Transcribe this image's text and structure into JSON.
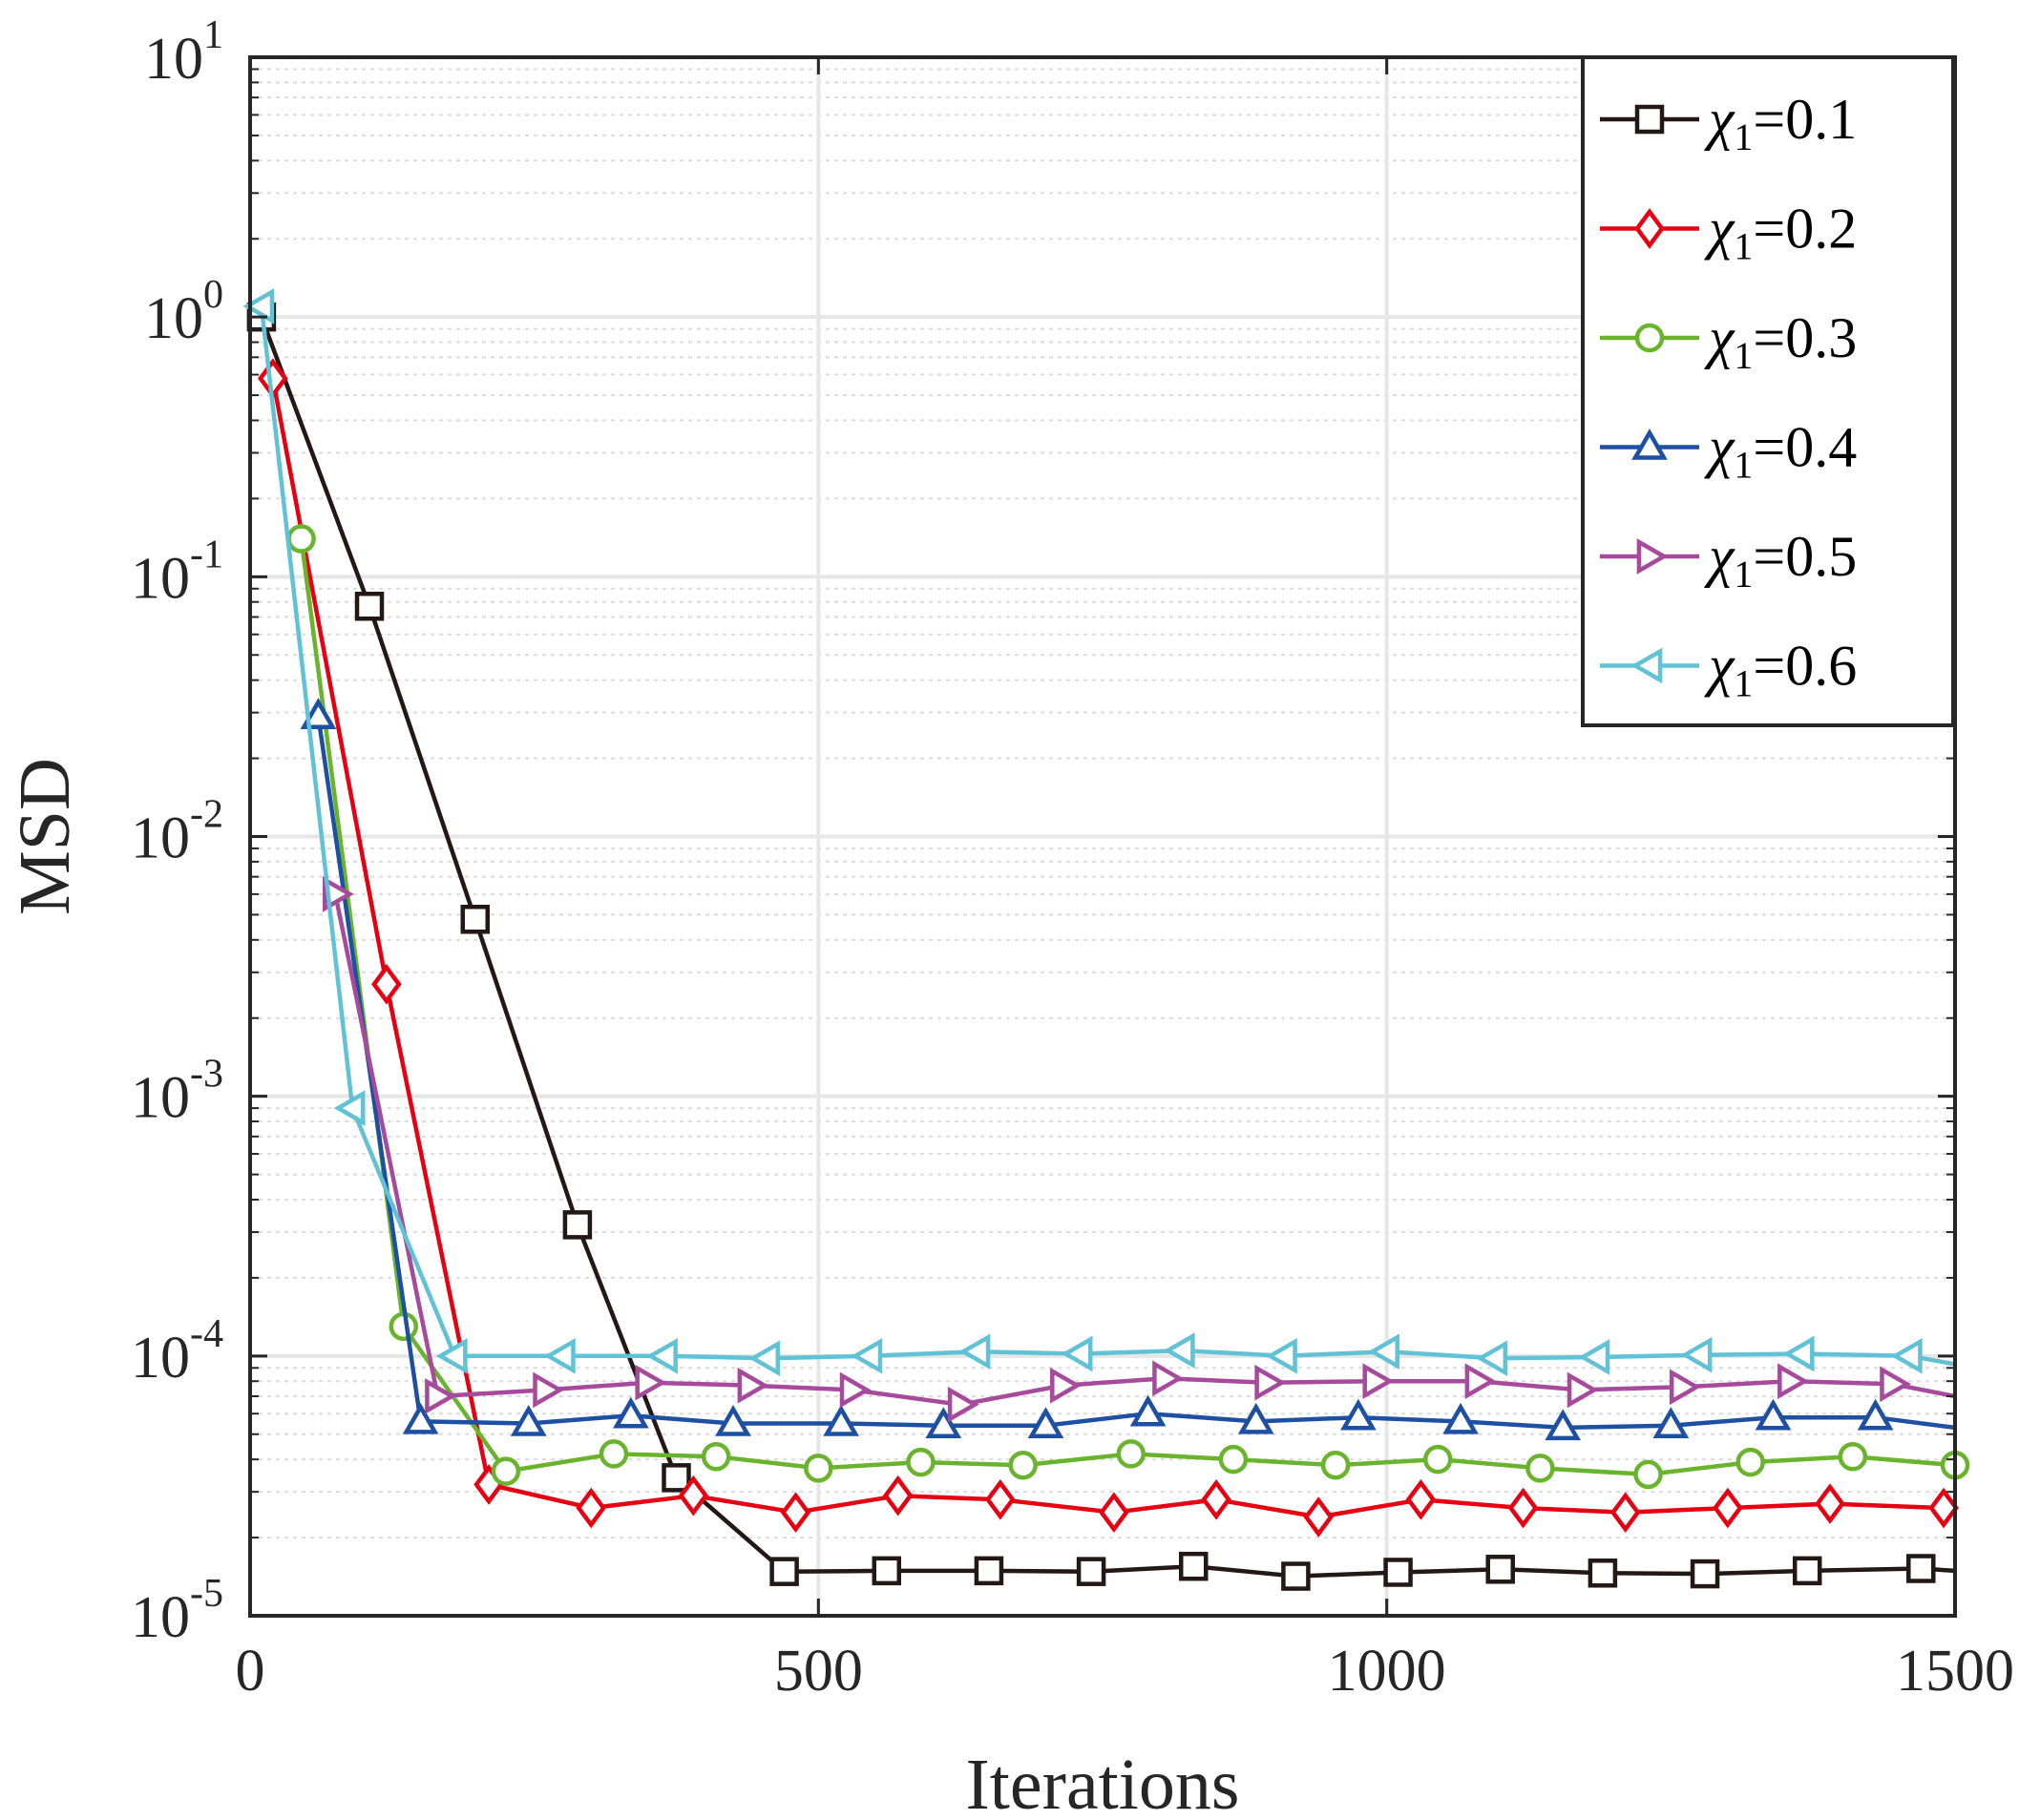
{
  "chart_data": {
    "type": "line",
    "xlabel": "Iterations",
    "ylabel": "MSD",
    "xlim": [
      0,
      1500
    ],
    "ylim": [
      1e-05,
      10
    ],
    "yscale": "log",
    "grid": true,
    "legend_position": "top-right",
    "x_ticks": [
      "0",
      "500",
      "1000",
      "1500"
    ],
    "y_ticks": [
      {
        "base": "10",
        "exp": "-5",
        "value": 1e-05
      },
      {
        "base": "10",
        "exp": "-4",
        "value": 0.0001
      },
      {
        "base": "10",
        "exp": "-3",
        "value": 0.001
      },
      {
        "base": "10",
        "exp": "-2",
        "value": 0.01
      },
      {
        "base": "10",
        "exp": "-1",
        "value": 0.1
      },
      {
        "base": "10",
        "exp": "0",
        "value": 1
      },
      {
        "base": "10",
        "exp": "1",
        "value": 10
      }
    ],
    "series": [
      {
        "name": "χ1=0.1",
        "symbol": "χ",
        "sub": "1",
        "value_text": "=0.1",
        "color": "#231815",
        "marker": "square",
        "x": [
          10,
          105,
          198,
          288,
          375,
          470,
          560,
          650,
          740,
          830,
          920,
          1010,
          1100,
          1190,
          1280,
          1370,
          1470,
          1500
        ],
        "y": [
          1.0,
          0.077,
          0.0048,
          0.00032,
          3.4e-05,
          1.48e-05,
          1.49e-05,
          1.49e-05,
          1.48e-05,
          1.55e-05,
          1.42e-05,
          1.47e-05,
          1.51e-05,
          1.46e-05,
          1.45e-05,
          1.49e-05,
          1.52e-05,
          1.49e-05
        ],
        "markers_x": [
          10,
          105,
          198,
          288,
          375,
          470,
          560,
          650,
          740,
          830,
          920,
          1010,
          1100,
          1190,
          1280,
          1370,
          1470
        ]
      },
      {
        "name": "χ1=0.2",
        "symbol": "χ",
        "sub": "1",
        "value_text": "=0.2",
        "color": "#e60012",
        "marker": "diamond",
        "x": [
          20,
          120,
          210,
          300,
          390,
          480,
          570,
          660,
          760,
          850,
          940,
          1030,
          1120,
          1210,
          1300,
          1390,
          1490,
          1500
        ],
        "y": [
          0.58,
          0.0027,
          3.2e-05,
          2.6e-05,
          2.9e-05,
          2.5e-05,
          2.9e-05,
          2.8e-05,
          2.5e-05,
          2.8e-05,
          2.4e-05,
          2.8e-05,
          2.6e-05,
          2.5e-05,
          2.6e-05,
          2.7e-05,
          2.6e-05,
          2.7e-05
        ],
        "markers_x": [
          20,
          120,
          210,
          300,
          390,
          480,
          570,
          660,
          760,
          850,
          940,
          1030,
          1120,
          1210,
          1300,
          1390,
          1490
        ]
      },
      {
        "name": "χ1=0.3",
        "symbol": "χ",
        "sub": "1",
        "value_text": "=0.3",
        "color": "#6ab42d",
        "marker": "circle",
        "x": [
          45,
          135,
          225,
          320,
          410,
          500,
          590,
          680,
          775,
          865,
          955,
          1045,
          1135,
          1230,
          1320,
          1410,
          1500
        ],
        "y": [
          0.14,
          0.00013,
          3.6e-05,
          4.2e-05,
          4.1e-05,
          3.7e-05,
          3.9e-05,
          3.8e-05,
          4.2e-05,
          4e-05,
          3.8e-05,
          4e-05,
          3.7e-05,
          3.5e-05,
          3.9e-05,
          4.1e-05,
          3.8e-05
        ],
        "markers_x": [
          45,
          135,
          225,
          320,
          410,
          500,
          590,
          680,
          775,
          865,
          955,
          1045,
          1135,
          1230,
          1320,
          1410,
          1500
        ]
      },
      {
        "name": "χ1=0.4",
        "symbol": "χ",
        "sub": "1",
        "value_text": "=0.4",
        "color": "#1d50a2",
        "marker": "triangle-up",
        "x": [
          60,
          150,
          245,
          335,
          425,
          520,
          610,
          700,
          790,
          885,
          975,
          1065,
          1155,
          1250,
          1340,
          1430,
          1500
        ],
        "y": [
          0.029,
          5.6e-05,
          5.5e-05,
          5.9e-05,
          5.5e-05,
          5.5e-05,
          5.4e-05,
          5.4e-05,
          6e-05,
          5.6e-05,
          5.8e-05,
          5.6e-05,
          5.3e-05,
          5.4e-05,
          5.8e-05,
          5.8e-05,
          5.3e-05
        ],
        "markers_x": [
          60,
          150,
          245,
          335,
          425,
          520,
          610,
          700,
          790,
          885,
          975,
          1065,
          1155,
          1250,
          1340,
          1430
        ]
      },
      {
        "name": "χ1=0.5",
        "symbol": "χ",
        "sub": "1",
        "value_text": "=0.5",
        "color": "#a64a9b",
        "marker": "triangle-right",
        "x": [
          75,
          165,
          260,
          350,
          440,
          530,
          625,
          715,
          805,
          895,
          990,
          1080,
          1170,
          1260,
          1355,
          1445,
          1500
        ],
        "y": [
          0.006,
          7e-05,
          7.4e-05,
          7.9e-05,
          7.7e-05,
          7.4e-05,
          6.5e-05,
          7.7e-05,
          8.2e-05,
          7.9e-05,
          8e-05,
          8e-05,
          7.4e-05,
          7.6e-05,
          8e-05,
          7.8e-05,
          7e-05
        ],
        "markers_x": [
          75,
          165,
          260,
          350,
          440,
          530,
          625,
          715,
          805,
          895,
          990,
          1080,
          1170,
          1260,
          1355,
          1445
        ]
      },
      {
        "name": "χ1=0.6",
        "symbol": "χ",
        "sub": "1",
        "value_text": "=0.6",
        "color": "#61c1d5",
        "marker": "triangle-left",
        "x": [
          10,
          90,
          180,
          275,
          365,
          455,
          545,
          640,
          730,
          820,
          910,
          1000,
          1095,
          1185,
          1275,
          1365,
          1460,
          1500
        ],
        "y": [
          1.1,
          0.0009,
          0.0001,
          0.0001,
          0.0001,
          9.8e-05,
          0.0001,
          0.000104,
          0.000102,
          0.000105,
          0.0001,
          0.000104,
          9.8e-05,
          9.9e-05,
          0.000101,
          0.000102,
          0.0001,
          9.3e-05
        ],
        "markers_x": [
          10,
          90,
          180,
          275,
          365,
          455,
          545,
          640,
          730,
          820,
          910,
          1000,
          1095,
          1185,
          1275,
          1365,
          1460
        ]
      }
    ]
  }
}
